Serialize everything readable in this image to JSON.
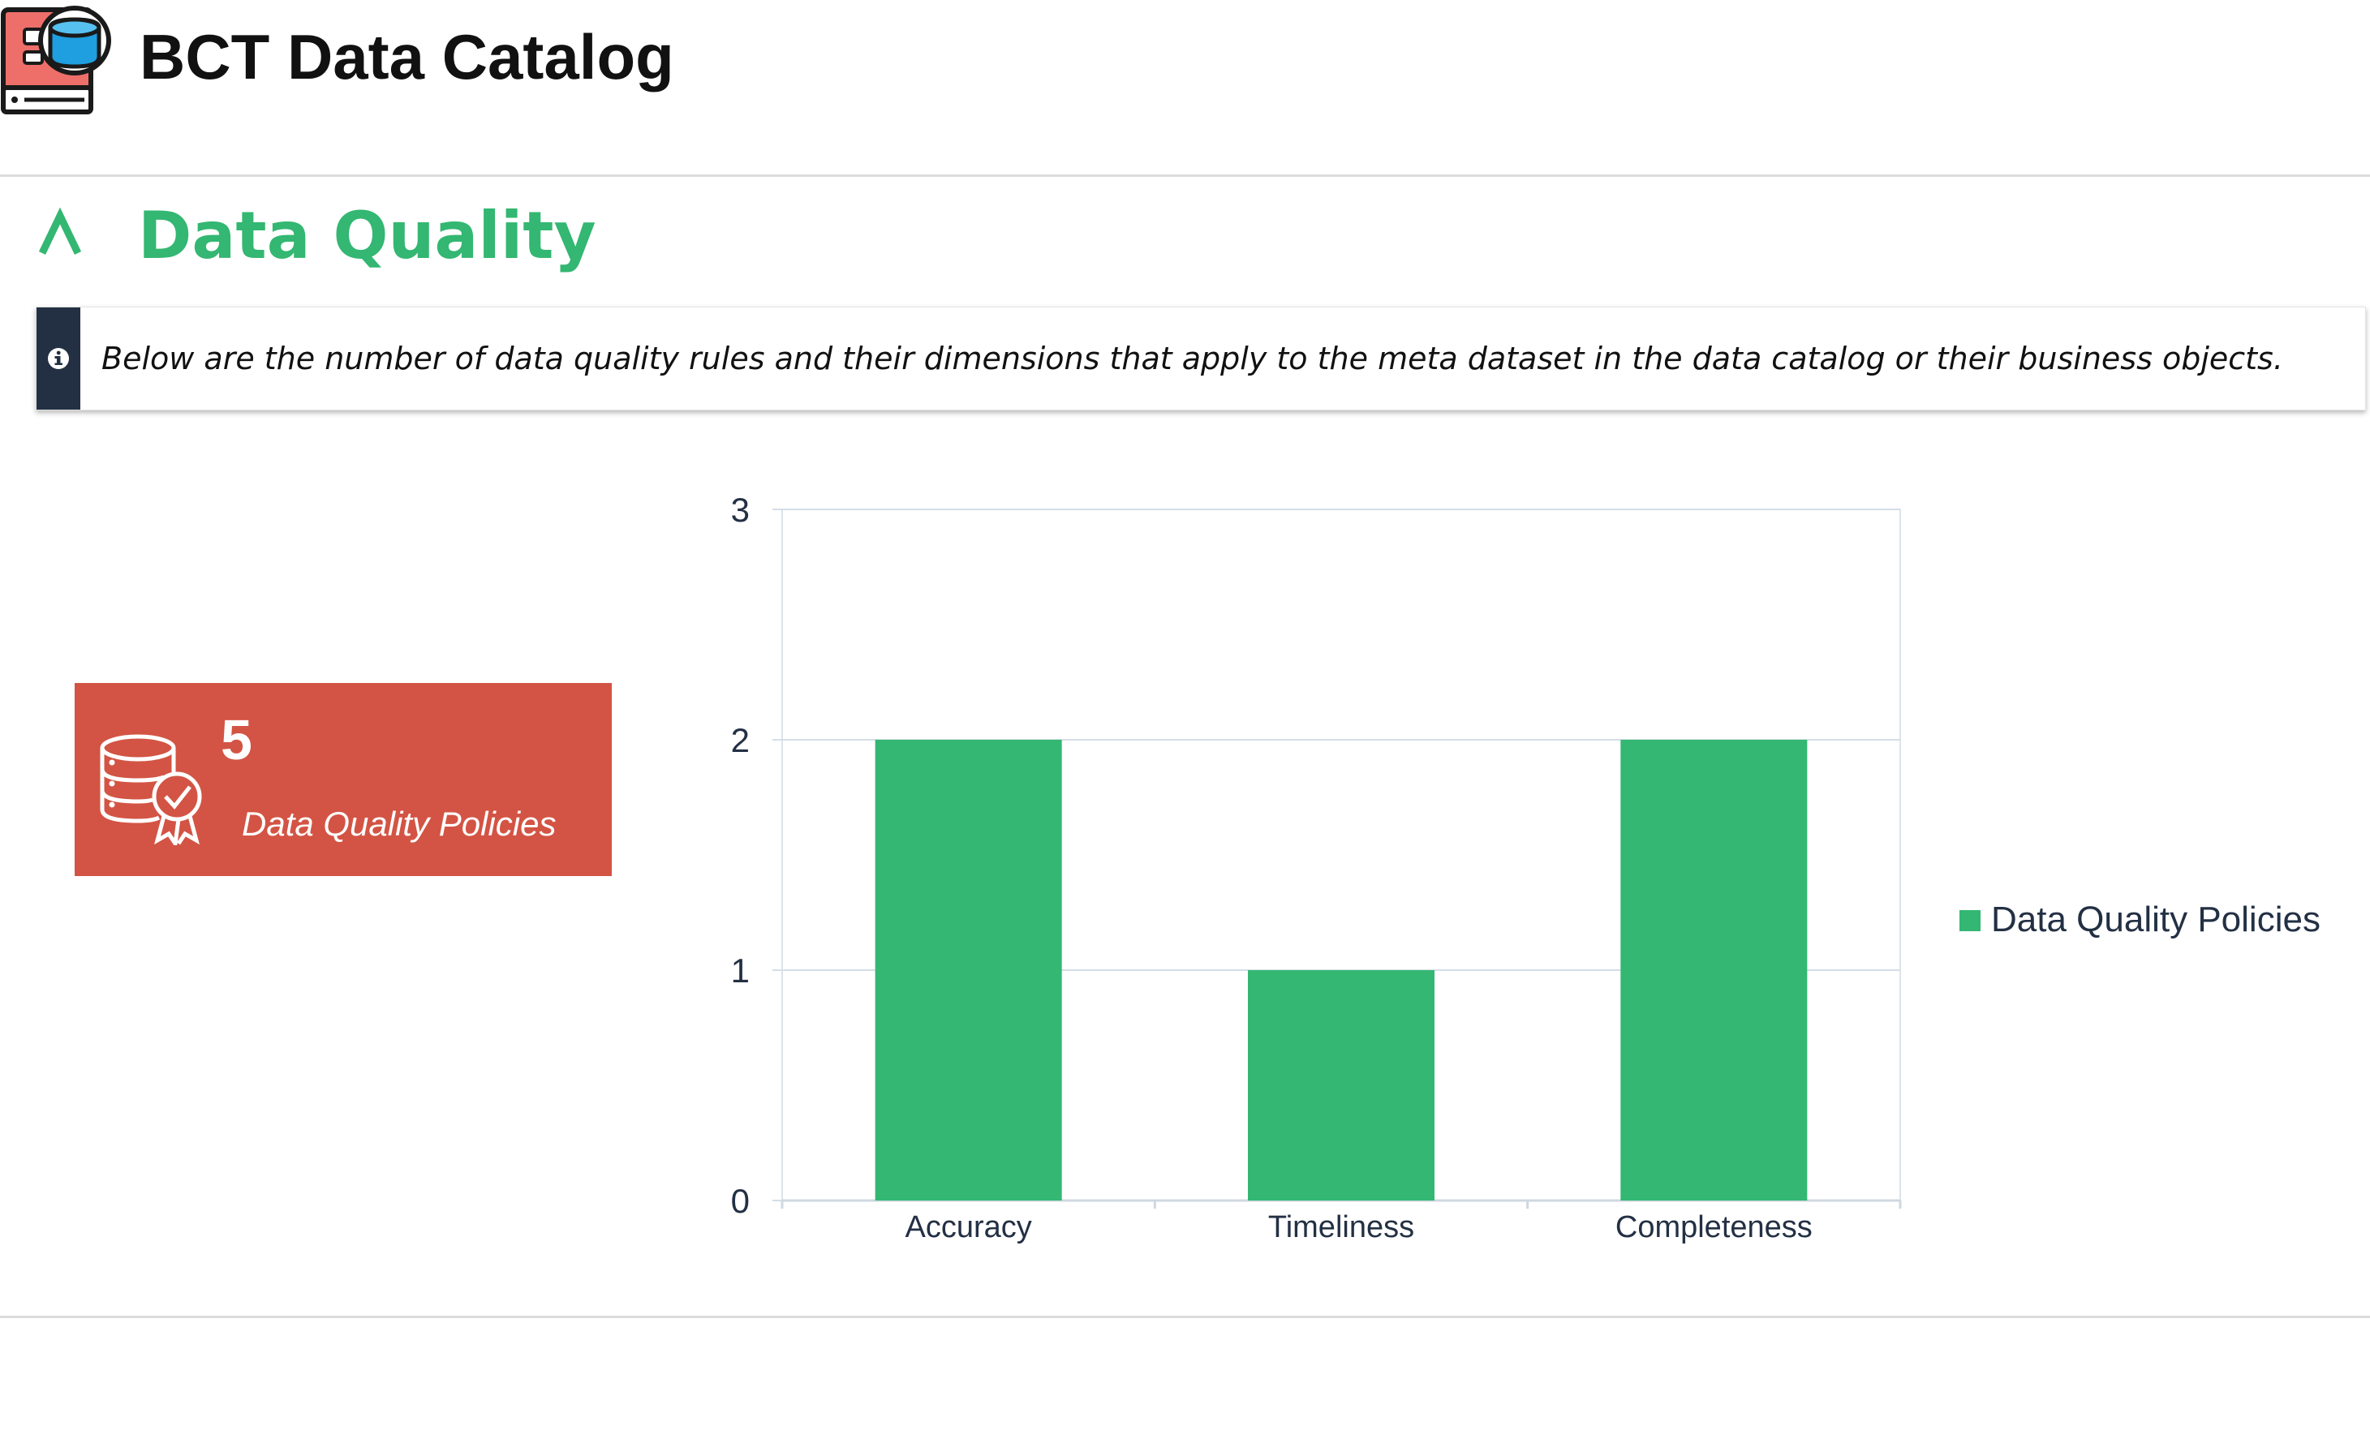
{
  "header": {
    "title": "BCT Data Catalog",
    "logo_icon": "book-database-icon"
  },
  "section": {
    "title": "Data Quality",
    "toggle_symbol": "∧",
    "accent_color": "#33b772",
    "info_text": "Below are the number of data quality rules and their dimensions that apply to the meta dataset in the data catalog or their business objects."
  },
  "kpi": {
    "value": "5",
    "label": "Data Quality Policies",
    "icon": "database-certified-icon",
    "color": "#d35444"
  },
  "chart_data": {
    "type": "bar",
    "categories": [
      "Accuracy",
      "Timeliness",
      "Completeness"
    ],
    "series": [
      {
        "name": "Data Quality Policies",
        "values": [
          2,
          1,
          2
        ],
        "color": "#33b772"
      }
    ],
    "ylim": [
      0,
      3
    ],
    "yticks": [
      0,
      1,
      2,
      3
    ],
    "grid": true,
    "legend": "right"
  }
}
